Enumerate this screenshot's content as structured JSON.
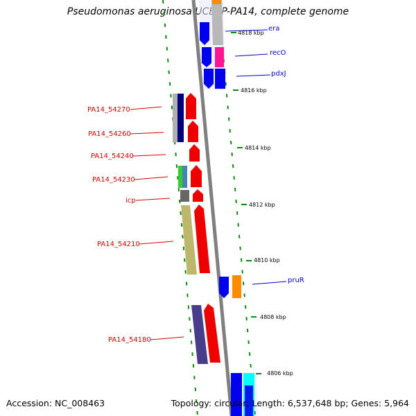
{
  "header": {
    "title": "Pseudomonas aeruginosa UCBPP-PA14, complete genome"
  },
  "footer": {
    "accession": "Accession: NC_008463",
    "summary": "Topology: circular; Length: 6,537,648 bp; Genes: 5,964"
  },
  "colors": {
    "backbone": "#888888",
    "tick": "#008000",
    "left_label": "#d40000",
    "right_label": "#0000c8"
  },
  "scale_labels": [
    "4818 kbp",
    "4816 kbp",
    "4814 kbp",
    "4812 kbp",
    "4810 kbp",
    "4808 kbp",
    "4806 kbp"
  ],
  "left_genes": [
    "PA14_54270",
    "PA14_54260",
    "PA14_54240",
    "PA14_54230",
    "icp",
    "PA14_54210",
    "PA14_54180"
  ],
  "right_genes": [
    "era",
    "recO",
    "pdxJ",
    "pruR"
  ]
}
